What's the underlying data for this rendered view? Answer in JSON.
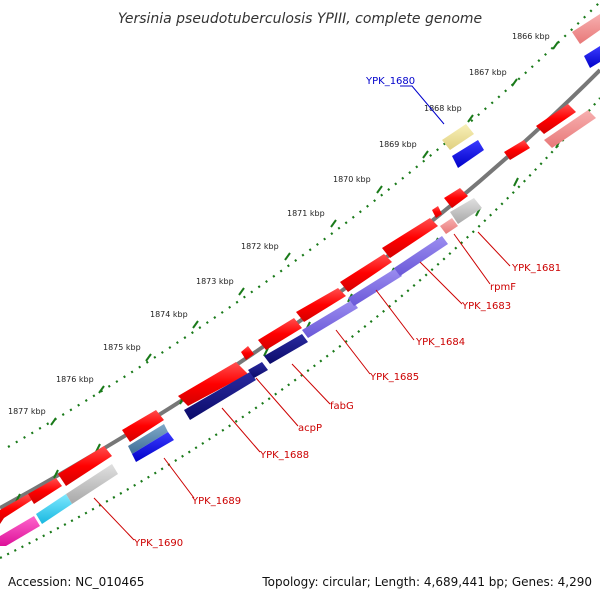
{
  "title": "Yersinia pseudotuberculosis YPIII, complete genome",
  "footer": {
    "accession": "Accession: NC_010465",
    "topology": "Topology: circular; Length: 4,689,441 bp; Genes: 4,290"
  },
  "colors": {
    "backbone": "#777777",
    "tick": "#1a7a1a",
    "forward": "#ff0000",
    "reverse_highlight": "#0000ee",
    "label_red": "#cc0000",
    "label_blue": "#0000cc"
  },
  "ruler": [
    "1866 kbp",
    "1867 kbp",
    "1868 kbp",
    "1869 kbp",
    "1870 kbp",
    "1871 kbp",
    "1872 kbp",
    "1873 kbp",
    "1874 kbp",
    "1875 kbp",
    "1876 kbp",
    "1877 kbp"
  ],
  "gene_labels": [
    {
      "name": "YPK_1680",
      "color": "blue"
    },
    {
      "name": "YPK_1681",
      "color": "red"
    },
    {
      "name": "rpmF",
      "color": "red"
    },
    {
      "name": "YPK_1683",
      "color": "red"
    },
    {
      "name": "YPK_1684",
      "color": "red"
    },
    {
      "name": "YPK_1685",
      "color": "red"
    },
    {
      "name": "fabG",
      "color": "red"
    },
    {
      "name": "acpP",
      "color": "red"
    },
    {
      "name": "YPK_1688",
      "color": "red"
    },
    {
      "name": "YPK_1689",
      "color": "red"
    },
    {
      "name": "YPK_1690",
      "color": "red"
    }
  ]
}
